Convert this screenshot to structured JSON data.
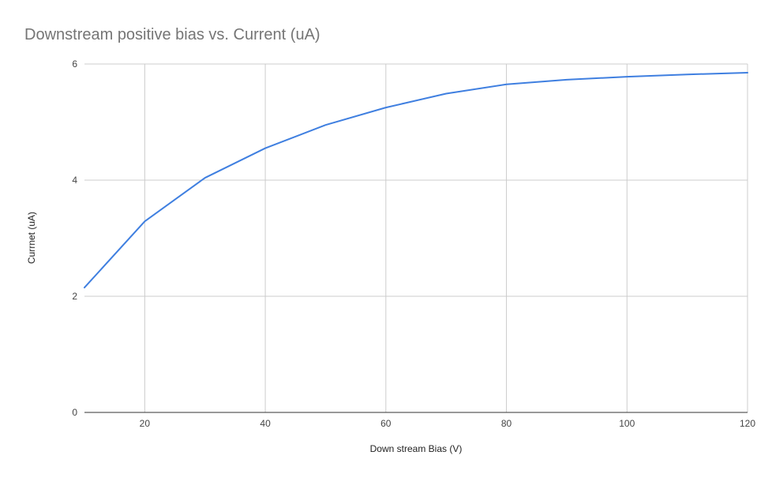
{
  "chart_data": {
    "type": "line",
    "title": "Downstream positive bias vs. Current (uA)",
    "xlabel": "Down stream Bias (V)",
    "ylabel": "Currnet (uA)",
    "xlim": [
      10,
      120
    ],
    "ylim": [
      0,
      6
    ],
    "xticks": [
      20,
      40,
      60,
      80,
      100,
      120
    ],
    "yticks": [
      0,
      2,
      4,
      6
    ],
    "grid": true,
    "legend": "none",
    "series": [
      {
        "color": "#3f7fe0",
        "x": [
          10,
          20,
          30,
          40,
          50,
          60,
          70,
          80,
          90,
          100,
          110,
          120
        ],
        "y": [
          2.15,
          3.29,
          4.04,
          4.55,
          4.95,
          5.25,
          5.49,
          5.65,
          5.73,
          5.78,
          5.82,
          5.85
        ]
      }
    ]
  }
}
